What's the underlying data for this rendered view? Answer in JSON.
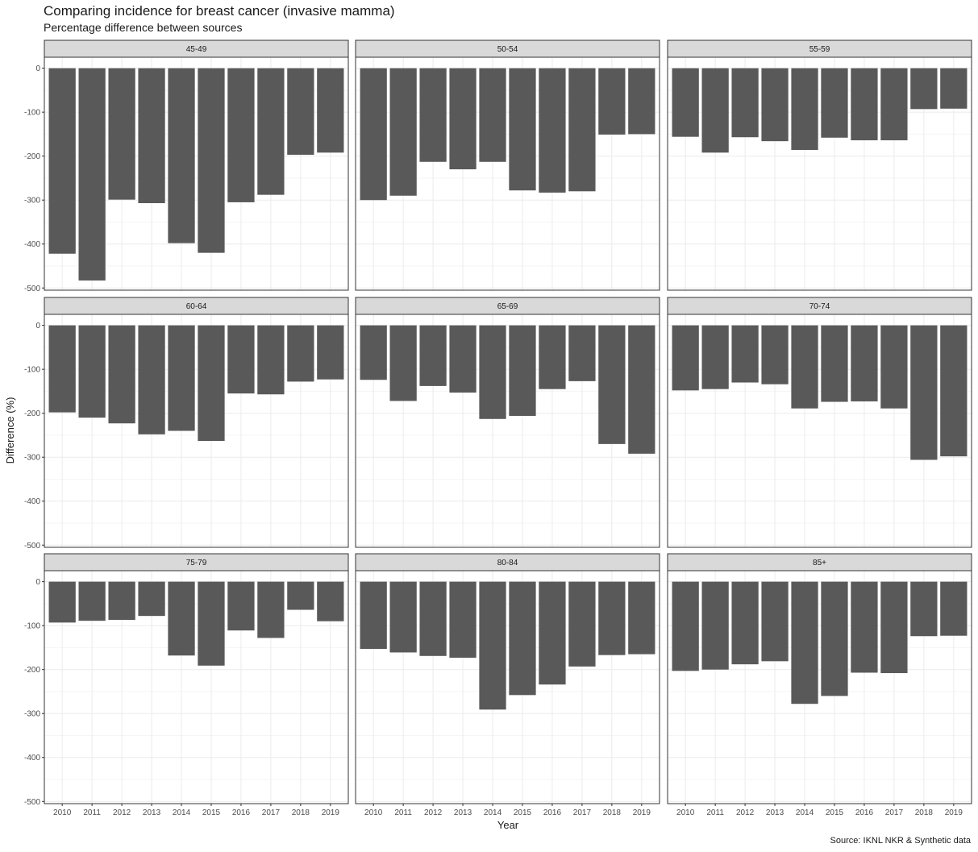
{
  "title": "Comparing incidence for breast cancer (invasive mamma)",
  "subtitle": "Percentage difference between sources",
  "caption": "Source: IKNL NKR & Synthetic data",
  "colors": {
    "bar": "#595959",
    "strip_fill": "#d9d9d9",
    "panel_border": "#333333",
    "grid_major": "#ebebeb",
    "grid_minor": "#f5f5f5"
  },
  "chart_data": {
    "type": "bar",
    "facet_layout": "3x3 grid, shared axes",
    "xlabel": "Year",
    "ylabel": "Difference (%)",
    "categories": [
      "2010",
      "2011",
      "2012",
      "2013",
      "2014",
      "2015",
      "2016",
      "2017",
      "2018",
      "2019"
    ],
    "yticks": [
      0,
      -100,
      -200,
      -300,
      -400,
      -500
    ],
    "ylim": [
      -505,
      25
    ],
    "grid": true,
    "panels": [
      {
        "label": "45-49",
        "values": [
          -422,
          -483,
          -299,
          -307,
          -398,
          -420,
          -305,
          -288,
          -197,
          -192
        ]
      },
      {
        "label": "50-54",
        "values": [
          -300,
          -290,
          -213,
          -230,
          -213,
          -278,
          -283,
          -280,
          -151,
          -150
        ]
      },
      {
        "label": "55-59",
        "values": [
          -156,
          -192,
          -157,
          -166,
          -186,
          -158,
          -164,
          -164,
          -93,
          -92
        ]
      },
      {
        "label": "60-64",
        "values": [
          -198,
          -210,
          -223,
          -248,
          -240,
          -263,
          -155,
          -157,
          -128,
          -123
        ]
      },
      {
        "label": "65-69",
        "values": [
          -124,
          -172,
          -138,
          -153,
          -213,
          -206,
          -145,
          -127,
          -270,
          -292
        ]
      },
      {
        "label": "70-74",
        "values": [
          -148,
          -145,
          -130,
          -134,
          -189,
          -174,
          -173,
          -189,
          -306,
          -298
        ]
      },
      {
        "label": "75-79",
        "values": [
          -93,
          -89,
          -87,
          -78,
          -168,
          -191,
          -111,
          -128,
          -64,
          -90
        ]
      },
      {
        "label": "80-84",
        "values": [
          -153,
          -161,
          -169,
          -173,
          -291,
          -258,
          -234,
          -193,
          -167,
          -165
        ]
      },
      {
        "label": "85+",
        "values": [
          -203,
          -200,
          -188,
          -181,
          -278,
          -260,
          -207,
          -208,
          -124,
          -123
        ]
      }
    ]
  }
}
